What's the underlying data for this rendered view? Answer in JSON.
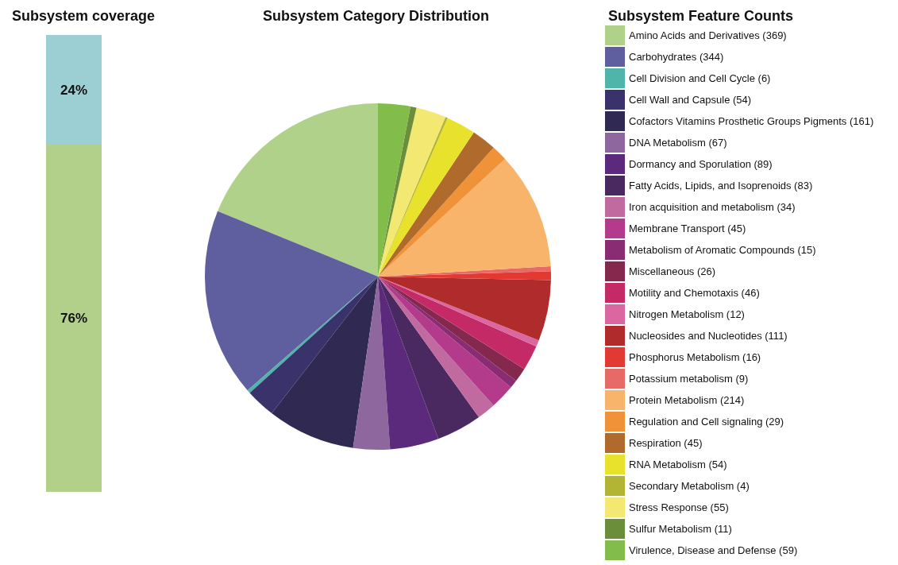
{
  "chart_data": [
    {
      "type": "bar",
      "title": "Subsystem coverage",
      "categories": [
        null
      ],
      "stacked": true,
      "series": [
        {
          "color": "#b2d08a",
          "values": [
            76
          ],
          "value_labels": [
            "76%"
          ]
        },
        {
          "color": "#9ccfd4",
          "values": [
            24
          ],
          "value_labels": [
            "24%"
          ]
        }
      ]
    },
    {
      "type": "pie",
      "title": "Subsystem Category Distribution",
      "legend_title": "Subsystem Feature Counts",
      "legend": "right",
      "data_labels": false,
      "categories": [
        "Amino Acids and Derivatives (369)",
        "Carbohydrates (344)",
        "Cell Division and Cell Cycle (6)",
        "Cell Wall and Capsule (54)",
        "Cofactors Vitamins Prosthetic Groups Pigments (161)",
        "DNA Metabolism (67)",
        "Dormancy and Sporulation (89)",
        "Fatty Acids, Lipids, and Isoprenoids (83)",
        "Iron acquisition and metabolism (34)",
        "Membrane Transport (45)",
        "Metabolism of Aromatic Compounds (15)",
        "Miscellaneous (26)",
        "Motility and Chemotaxis (46)",
        "Nitrogen Metabolism (12)",
        "Nucleosides and Nucleotides (111)",
        "Phosphorus Metabolism (16)",
        "Potassium metabolism (9)",
        "Protein Metabolism (214)",
        "Regulation and Cell signaling (29)",
        "Respiration (45)",
        "RNA Metabolism (54)",
        "Secondary Metabolism (4)",
        "Stress Response (55)",
        "Sulfur Metabolism (11)",
        "Virulence, Disease and Defense (59)"
      ],
      "values": [
        369,
        344,
        6,
        54,
        161,
        67,
        89,
        83,
        34,
        45,
        15,
        26,
        46,
        12,
        111,
        16,
        9,
        214,
        29,
        45,
        54,
        4,
        55,
        11,
        59
      ],
      "colors": [
        "#b0d18a",
        "#5f5e9e",
        "#4fb4a9",
        "#3a336b",
        "#302a52",
        "#8f679f",
        "#5c2a7c",
        "#4a2860",
        "#c06aa0",
        "#b43a8c",
        "#8a2c74",
        "#84284e",
        "#c42a66",
        "#da67a0",
        "#b02b2b",
        "#e23a32",
        "#e86a66",
        "#f8b46a",
        "#f09238",
        "#b06a2c",
        "#e8e22c",
        "#b2b434",
        "#f2e872",
        "#6a8e3a",
        "#82bc4a"
      ]
    }
  ]
}
